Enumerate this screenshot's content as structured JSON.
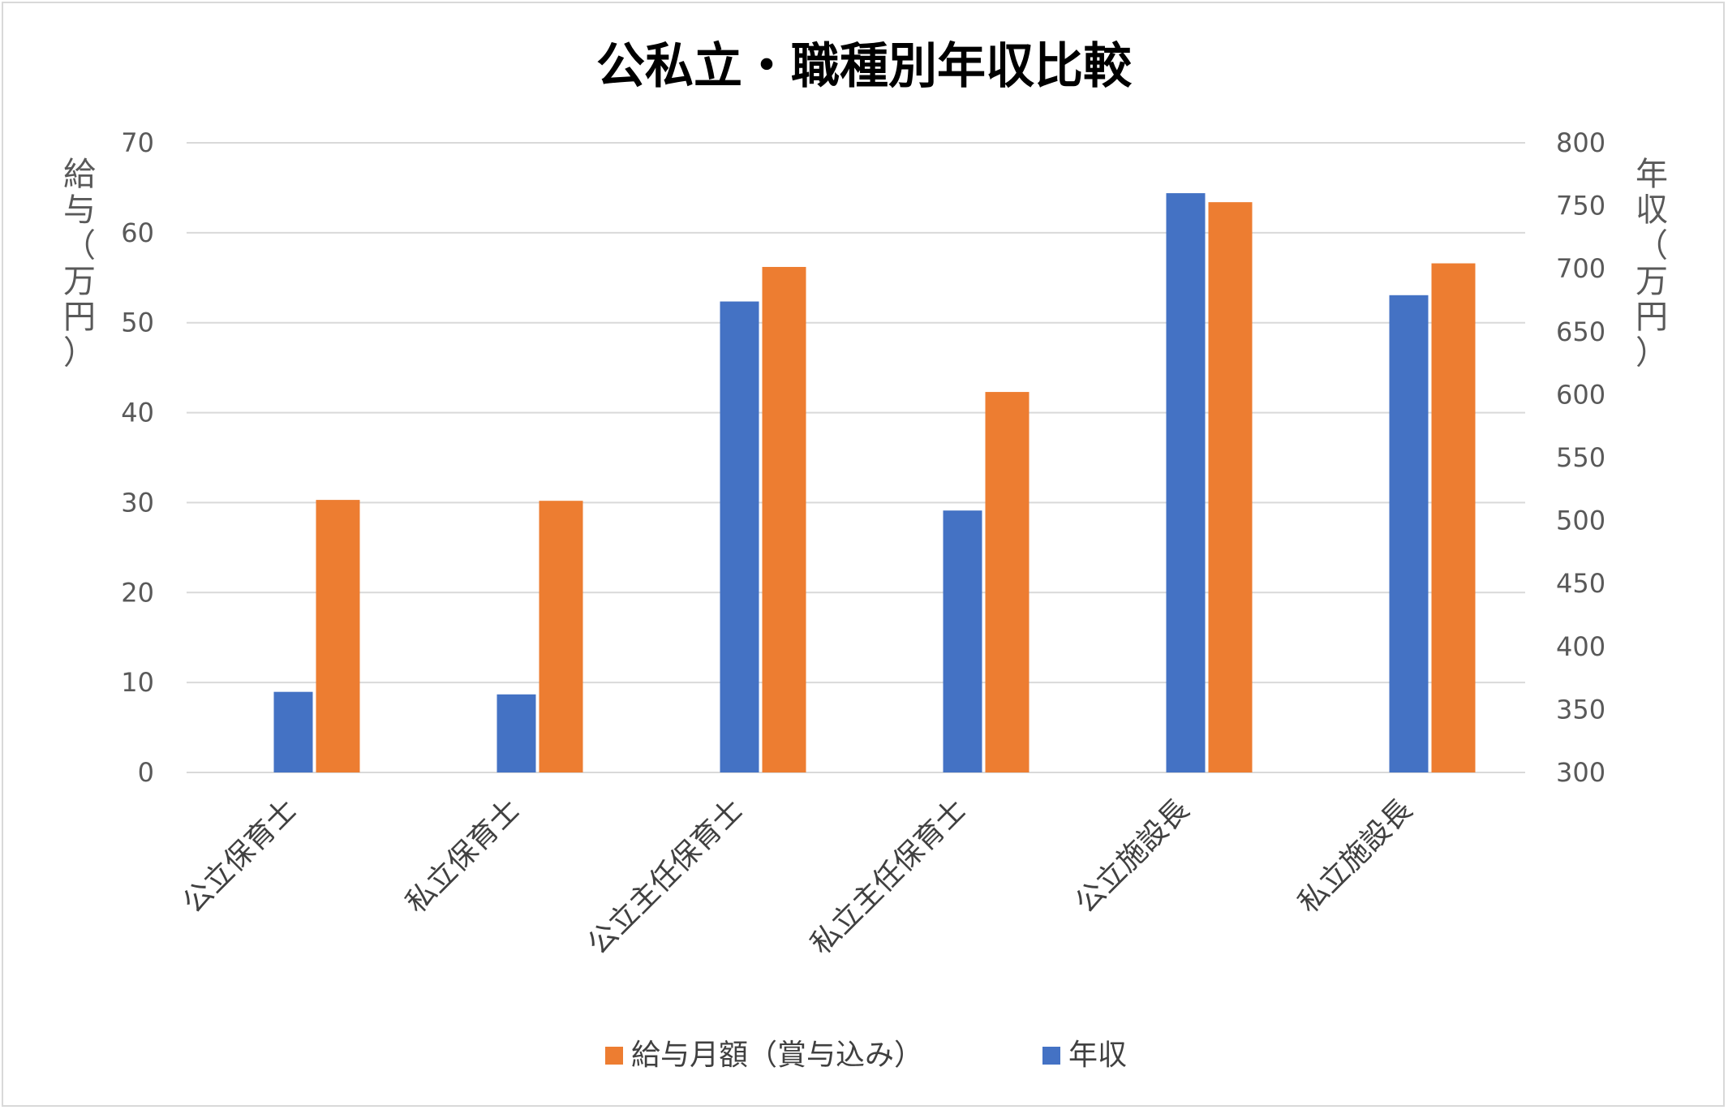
{
  "chart_data": {
    "type": "bar",
    "title": "公私立・職種別年収比較",
    "categories": [
      "公立保育士",
      "私立保育士",
      "公立主任保育士",
      "私立主任保育士",
      "公立施設長",
      "私立施設長"
    ],
    "series": [
      {
        "name": "年収",
        "axis": "right",
        "color": "#4472c4",
        "values": [
          364,
          362,
          674,
          508,
          760,
          679
        ]
      },
      {
        "name": "給与月額（賞与込み）",
        "axis": "left",
        "color": "#ed7d31",
        "values": [
          30.3,
          30.2,
          56.2,
          42.3,
          63.4,
          56.6
        ]
      }
    ],
    "ylabel_left_lines": [
      "給",
      "与",
      "（",
      "万",
      "円",
      "）"
    ],
    "ylabel_right_lines": [
      "年",
      "収",
      "（",
      "万",
      "円",
      "）"
    ],
    "ylim_left": [
      0,
      70
    ],
    "yticks_left": [
      "0",
      "10",
      "20",
      "30",
      "40",
      "50",
      "60",
      "70"
    ],
    "ylim_right": [
      300,
      800
    ],
    "yticks_right": [
      "300",
      "350",
      "400",
      "450",
      "500",
      "550",
      "600",
      "650",
      "700",
      "750",
      "800"
    ],
    "legend": [
      "給与月額（賞与込み）",
      "年収"
    ],
    "legend_placement": "bottom",
    "grid": true,
    "colors": {
      "gridline": "#d9d9d9",
      "axis_text": "#595959"
    }
  }
}
